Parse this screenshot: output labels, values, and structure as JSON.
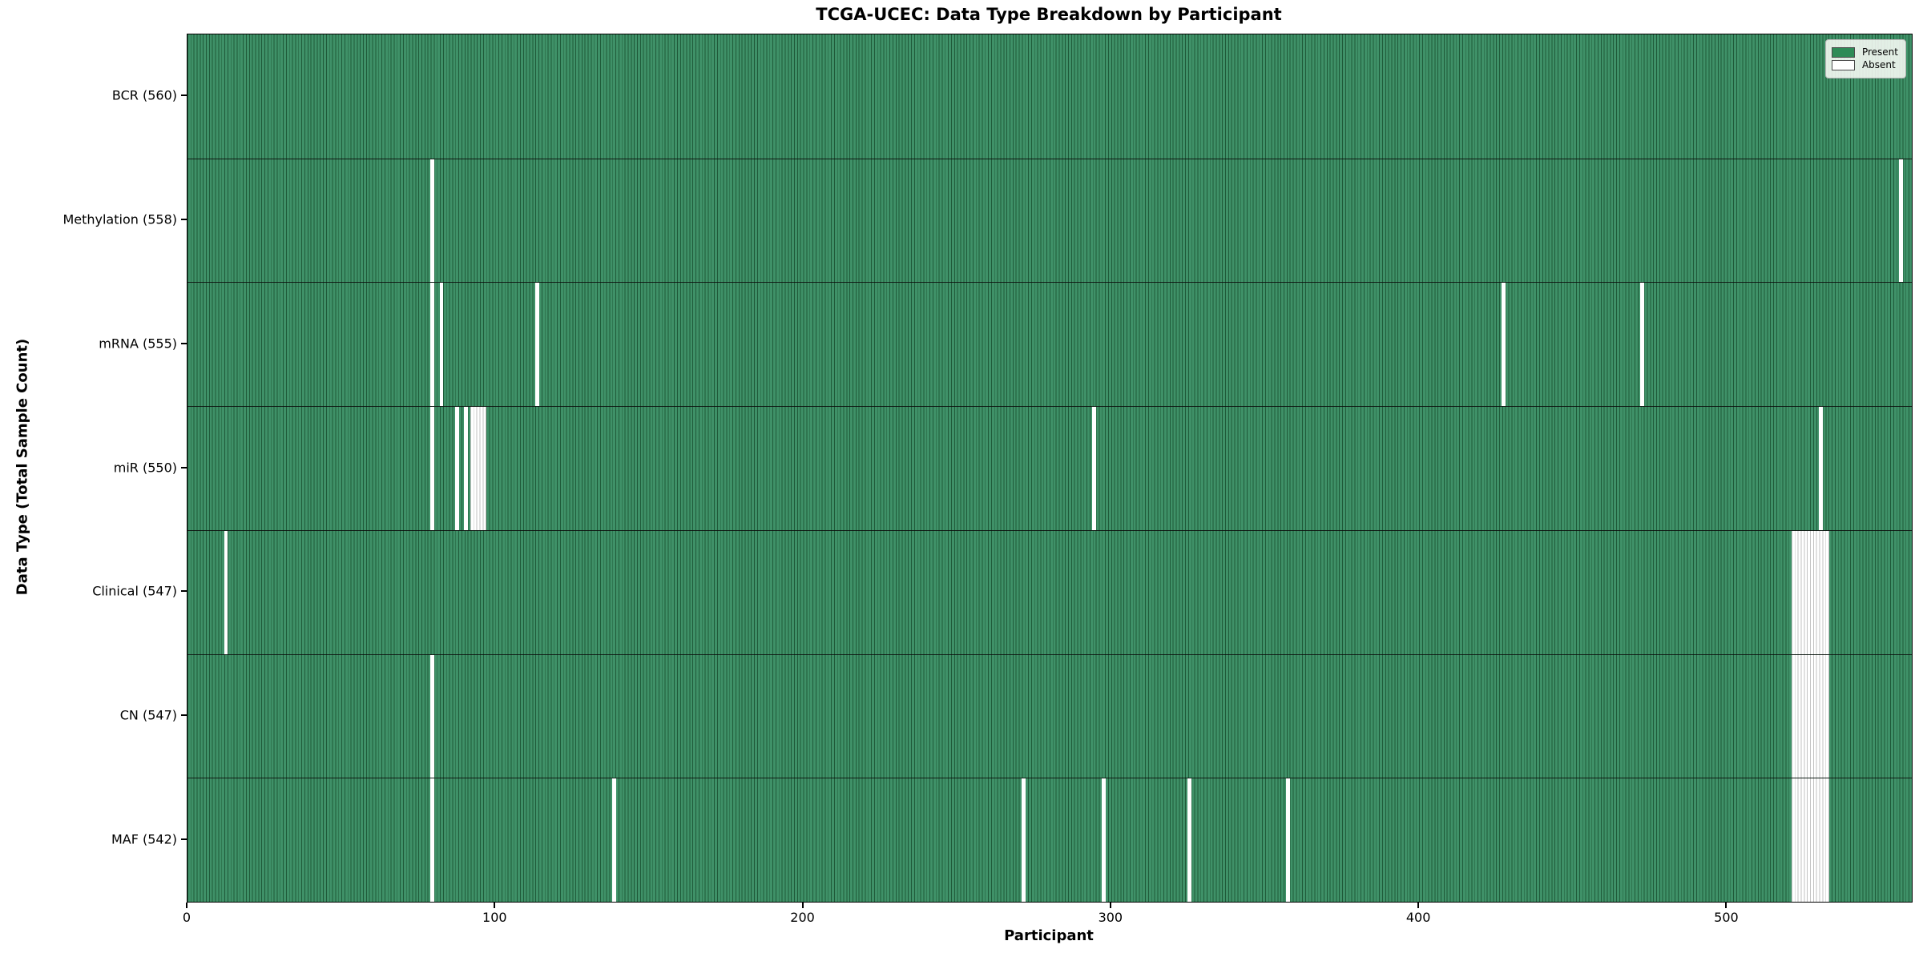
{
  "figure": {
    "background": "#ffffff"
  },
  "chart_data": {
    "type": "heatmap",
    "title": "TCGA-UCEC: Data Type Breakdown by Participant",
    "xlabel": "Participant",
    "ylabel": "Data Type (Total Sample Count)",
    "x_tick_values": [
      0,
      100,
      200,
      300,
      400,
      500
    ],
    "x_tick_labels": [
      "0",
      "100",
      "200",
      "300",
      "400",
      "500"
    ],
    "xlim": [
      0,
      560
    ],
    "n_participants": 560,
    "grid": false,
    "legend_position": "upper right",
    "legend": [
      {
        "label": "Present",
        "color": "#2e8b57"
      },
      {
        "label": "Absent",
        "color": "#ffffff"
      }
    ],
    "colors": {
      "present_fill": "#3f9168",
      "present_edge": "#1f5a39",
      "absent_fill": "#ffffff",
      "absent_edge": "#c2c2c2",
      "row_divider": "#0a0a0a",
      "axis": "#000000"
    },
    "rows": [
      {
        "label": "BCR (560)",
        "data_type": "BCR",
        "total": 560,
        "absent_participants": []
      },
      {
        "label": "Methylation (558)",
        "data_type": "Methylation",
        "total": 558,
        "absent_participants": [
          79,
          556
        ]
      },
      {
        "label": "mRNA (555)",
        "data_type": "mRNA",
        "total": 555,
        "absent_participants": [
          79,
          82,
          113,
          427,
          472
        ]
      },
      {
        "label": "miR (550)",
        "data_type": "miR",
        "total": 550,
        "absent_participants": [
          79,
          87,
          90,
          92,
          93,
          94,
          95,
          96,
          294,
          530
        ]
      },
      {
        "label": "Clinical (547)",
        "data_type": "Clinical",
        "total": 547,
        "absent_participants": [
          12,
          521,
          522,
          523,
          524,
          525,
          526,
          527,
          528,
          529,
          530,
          531,
          532
        ]
      },
      {
        "label": "CN (547)",
        "data_type": "CN",
        "total": 547,
        "absent_participants": [
          79,
          521,
          522,
          523,
          524,
          525,
          526,
          527,
          528,
          529,
          530,
          531,
          532
        ]
      },
      {
        "label": "MAF (542)",
        "data_type": "MAF",
        "total": 542,
        "absent_participants": [
          79,
          138,
          271,
          297,
          325,
          357,
          521,
          522,
          523,
          524,
          525,
          526,
          527,
          528,
          529,
          530,
          531,
          532
        ]
      }
    ]
  }
}
